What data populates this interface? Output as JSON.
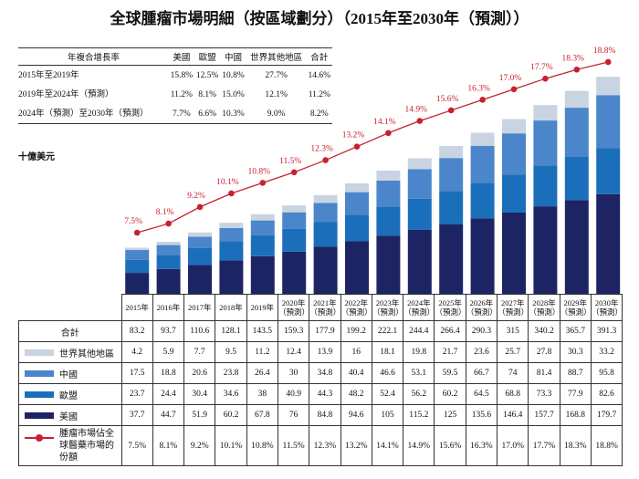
{
  "title": "全球腫瘤市場明細（按區域劃分）（2015年至2030年（預測））",
  "unit_label": "十億美元",
  "cagr_table": {
    "headers": [
      "年複合增長率",
      "美國",
      "歐盟",
      "中國",
      "世界其他地區",
      "合計"
    ],
    "rows": [
      [
        "2015年至2019年",
        "15.8%",
        "12.5%",
        "10.8%",
        "27.7%",
        "14.6%"
      ],
      [
        "2019年至2024年（預測）",
        "11.2%",
        "8.1%",
        "15.0%",
        "12.1%",
        "11.2%"
      ],
      [
        "2024年（預測）至2030年（預測）",
        "7.7%",
        "6.6%",
        "10.3%",
        "9.0%",
        "8.2%"
      ]
    ]
  },
  "chart_data": {
    "type": "bar",
    "stacked": true,
    "categories": [
      "2015年",
      "2016年",
      "2017年",
      "2018年",
      "2019年",
      "2020年（預測）",
      "2021年（預測）",
      "2022年（預測）",
      "2023年（預測）",
      "2024年（預測）",
      "2025年（預測）",
      "2026年（預測）",
      "2027年（預測）",
      "2028年（預測）",
      "2029年（預測）",
      "2030年（預測）"
    ],
    "total_label": "合計",
    "totals": [
      83.2,
      93.7,
      110.6,
      128.1,
      143.5,
      159.3,
      177.9,
      199.2,
      222.1,
      244.4,
      266.4,
      290.3,
      315.0,
      340.2,
      365.7,
      391.3
    ],
    "series": [
      {
        "name": "世界其他地區",
        "color": "#c9d4e2",
        "values": [
          4.2,
          5.9,
          7.7,
          9.5,
          11.2,
          12.4,
          13.9,
          16.0,
          18.1,
          19.8,
          21.7,
          23.6,
          25.7,
          27.8,
          30.3,
          33.2
        ]
      },
      {
        "name": "中國",
        "color": "#4a86c9",
        "values": [
          17.5,
          18.8,
          20.6,
          23.8,
          26.4,
          30.0,
          34.8,
          40.4,
          46.6,
          53.1,
          59.5,
          66.7,
          74.0,
          81.4,
          88.7,
          95.8
        ]
      },
      {
        "name": "歐盟",
        "color": "#1b6fba",
        "values": [
          23.7,
          24.4,
          30.4,
          34.6,
          38.0,
          40.9,
          44.3,
          48.2,
          52.4,
          56.2,
          60.2,
          64.5,
          68.8,
          73.3,
          77.9,
          82.6
        ]
      },
      {
        "name": "美國",
        "color": "#1d2463",
        "values": [
          37.7,
          44.7,
          51.9,
          60.2,
          67.8,
          76.0,
          84.8,
          94.6,
          105.0,
          115.2,
          125.0,
          135.6,
          146.4,
          157.7,
          168.8,
          179.7
        ]
      }
    ],
    "line": {
      "name": "腫瘤市場佔全球醫藥市場的份額",
      "color": "#c8202e",
      "values": [
        7.5,
        8.1,
        9.2,
        10.1,
        10.8,
        11.5,
        12.3,
        13.2,
        14.1,
        14.9,
        15.6,
        16.3,
        17.0,
        17.7,
        18.3,
        18.8
      ],
      "labels": [
        "7.5%",
        "8.1%",
        "9.2%",
        "10.1%",
        "10.8%",
        "11.5%",
        "12.3%",
        "13.2%",
        "14.1%",
        "14.9%",
        "15.6%",
        "16.3%",
        "17.0%",
        "17.7%",
        "18.3%",
        "18.8%"
      ]
    },
    "ylabel": "十億美元",
    "grid": false,
    "legend": "table-left"
  }
}
